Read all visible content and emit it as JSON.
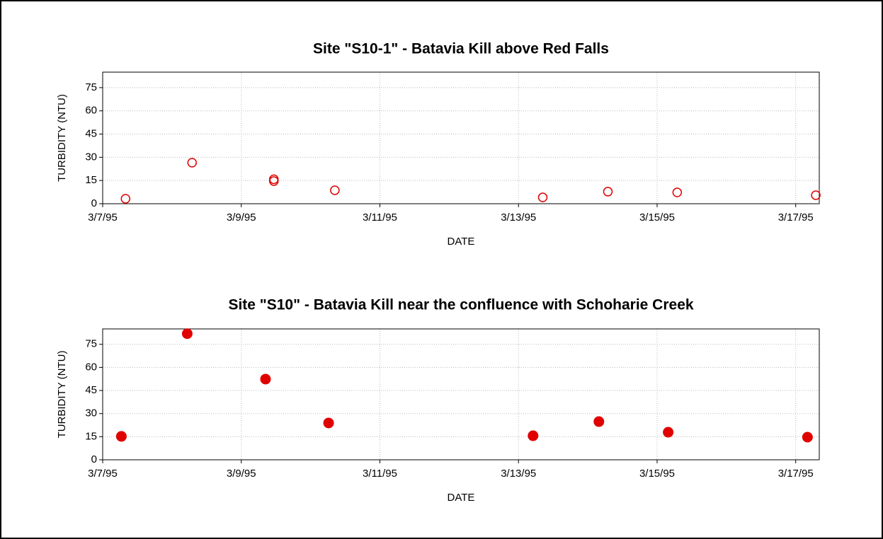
{
  "chart_data": [
    {
      "type": "scatter",
      "title": "Site \"S10-1\" - Batavia Kill above Red Falls",
      "x_label": "DATE",
      "y_label": "TURBIDITY (NTU)",
      "series": [
        {
          "name": "S10-1",
          "color": "#e00000",
          "marker": "hollow",
          "x": [
            7.33,
            8.29,
            9.47,
            9.47,
            10.35,
            13.35,
            14.29,
            15.29,
            17.29
          ],
          "values": [
            3.2,
            26.5,
            14.6,
            15.8,
            8.7,
            4.1,
            7.8,
            7.3,
            5.5
          ]
        }
      ],
      "xlim": [
        7,
        17.34
      ],
      "ylim": [
        0,
        85
      ],
      "xticks": [
        {
          "value": 7,
          "label": "3/7/95"
        },
        {
          "value": 9,
          "label": "3/9/95"
        },
        {
          "value": 11,
          "label": "3/11/95"
        },
        {
          "value": 13,
          "label": "3/13/95"
        },
        {
          "value": 15,
          "label": "3/15/95"
        },
        {
          "value": 17,
          "label": "3/17/95"
        }
      ],
      "yticks": [
        0,
        15,
        30,
        45,
        60,
        75
      ],
      "grid": true
    },
    {
      "type": "scatter",
      "title": "Site \"S10\" - Batavia Kill near the confluence with Schoharie Creek",
      "x_label": "DATE",
      "y_label": "TURBIDITY (NTU)",
      "series": [
        {
          "name": "S10",
          "color": "#e00000",
          "marker": "filled",
          "x": [
            7.27,
            8.22,
            9.35,
            10.26,
            13.21,
            14.16,
            15.16,
            17.17
          ],
          "values": [
            15.2,
            81.9,
            52.4,
            23.9,
            15.6,
            24.8,
            17.9,
            14.7
          ]
        }
      ],
      "xlim": [
        7,
        17.34
      ],
      "ylim": [
        0,
        85
      ],
      "xticks": [
        {
          "value": 7,
          "label": "3/7/95"
        },
        {
          "value": 9,
          "label": "3/9/95"
        },
        {
          "value": 11,
          "label": "3/11/95"
        },
        {
          "value": 13,
          "label": "3/13/95"
        },
        {
          "value": 15,
          "label": "3/15/95"
        },
        {
          "value": 17,
          "label": "3/17/95"
        }
      ],
      "yticks": [
        0,
        15,
        30,
        45,
        60,
        75
      ],
      "grid": true
    }
  ]
}
